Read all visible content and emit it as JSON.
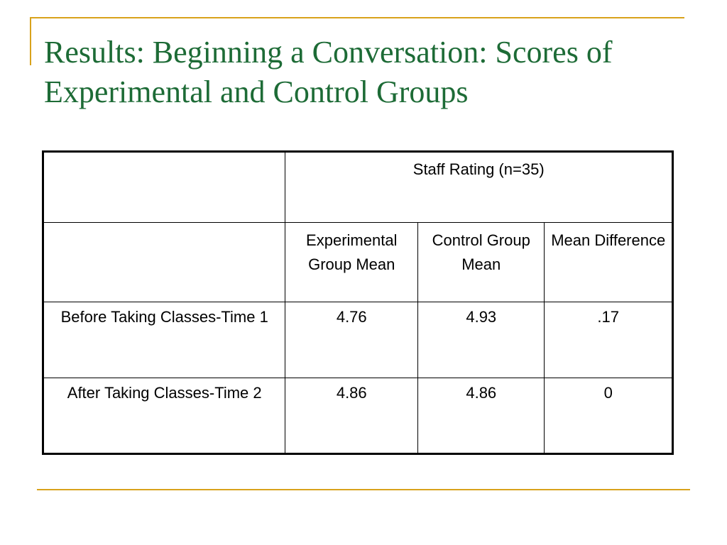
{
  "slide": {
    "title": "Results: Beginning a Conversation: Scores of Experimental and Control Groups"
  },
  "table": {
    "group_header": "Staff Rating  (n=35)",
    "column_headers": [
      "Experimental Group Mean",
      "Control Group Mean",
      "Mean Difference"
    ],
    "rows": [
      {
        "label": "Before Taking Classes-Time 1",
        "values": [
          "4.76",
          "4.93",
          ".17"
        ]
      },
      {
        "label": "After Taking Classes-Time 2",
        "values": [
          "4.86",
          "4.86",
          "0"
        ]
      }
    ]
  },
  "colors": {
    "title": "#1d6b36",
    "accent": "#d9a21b",
    "border": "#000000"
  }
}
